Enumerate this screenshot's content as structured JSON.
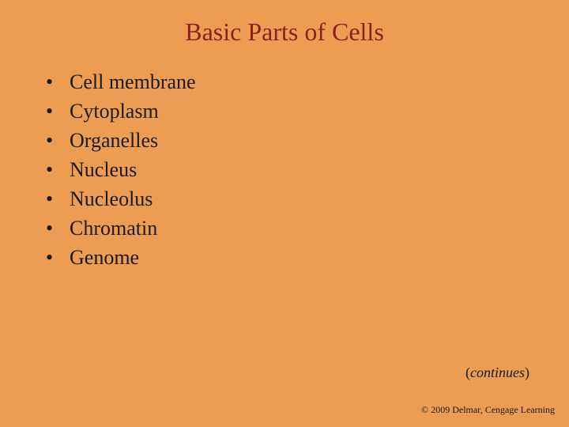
{
  "slide": {
    "title": "Basic Parts of Cells",
    "title_color": "#8b2020",
    "title_fontsize": 32,
    "background_color": "#ed9d53",
    "bullet_color": "#1a1a1a",
    "bullet_fontsize": 26,
    "bullets": [
      "Cell membrane",
      "Cytoplasm",
      "Organelles",
      "Nucleus",
      "Nucleolus",
      "Chromatin",
      "Genome"
    ],
    "continues_paren_open": "(",
    "continues_word": "continues",
    "continues_paren_close": ")",
    "copyright": "© 2009 Delmar, Cengage Learning"
  }
}
